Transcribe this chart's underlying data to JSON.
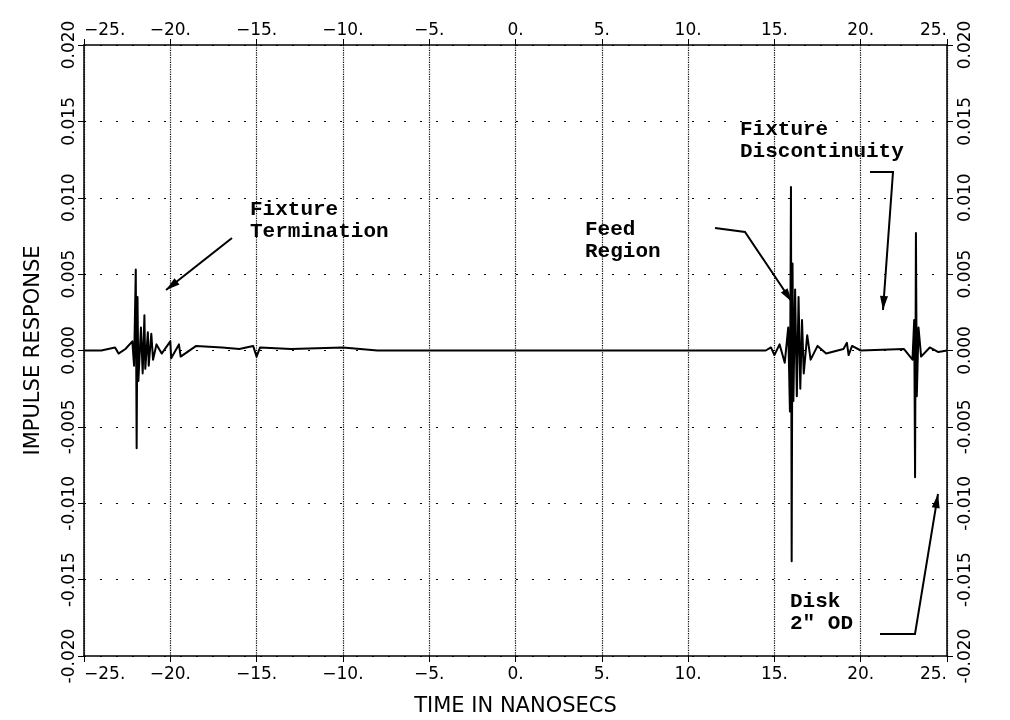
{
  "chart_data": {
    "type": "line",
    "xlabel": "TIME IN NANOSECS",
    "ylabel": "IMPULSE RESPONSE",
    "color": "#000000",
    "line_style": "solid",
    "marker": "none",
    "grid": true,
    "xlim": [
      -25,
      25
    ],
    "x2lim": [
      -25,
      25
    ],
    "xticks": [
      {
        "value": -25,
        "label": "−25."
      },
      {
        "value": -20,
        "label": "−20."
      },
      {
        "value": -15,
        "label": "−15."
      },
      {
        "value": -10,
        "label": "−10."
      },
      {
        "value": -5,
        "label": "−5."
      },
      {
        "value": 0,
        "label": "0."
      },
      {
        "value": 5,
        "label": "5."
      },
      {
        "value": 10,
        "label": "10."
      },
      {
        "value": 15,
        "label": "15."
      },
      {
        "value": 20,
        "label": "20."
      },
      {
        "value": 25,
        "label": "25."
      }
    ],
    "x2ticks": [
      {
        "value": -25,
        "label": "−25."
      },
      {
        "value": -20,
        "label": "−20."
      },
      {
        "value": -15,
        "label": "−15."
      },
      {
        "value": -10,
        "label": "−10."
      },
      {
        "value": -5,
        "label": "−5."
      },
      {
        "value": 0,
        "label": "0."
      },
      {
        "value": 5,
        "label": "5."
      },
      {
        "value": 10,
        "label": "10."
      },
      {
        "value": 15,
        "label": "15."
      },
      {
        "value": 20,
        "label": "20."
      },
      {
        "value": 25,
        "label": "25."
      }
    ],
    "ylim": [
      -0.02,
      0.02
    ],
    "y2lim": [
      -0.02,
      0.02
    ],
    "yticks": [
      {
        "value": -0.02,
        "label": "-0.020"
      },
      {
        "value": -0.015,
        "label": "-0.015"
      },
      {
        "value": -0.01,
        "label": "-0.010"
      },
      {
        "value": -0.005,
        "label": "-0.005"
      },
      {
        "value": 0,
        "label": "0.000"
      },
      {
        "value": 0.005,
        "label": "0.005"
      },
      {
        "value": 0.01,
        "label": "0.010"
      },
      {
        "value": 0.015,
        "label": "0.015"
      },
      {
        "value": 0.02,
        "label": "0.020"
      }
    ],
    "y2ticks": [
      {
        "value": -0.02,
        "label": "-0.020"
      },
      {
        "value": -0.015,
        "label": "-0.015"
      },
      {
        "value": -0.01,
        "label": "-0.010"
      },
      {
        "value": -0.005,
        "label": "-0.005"
      },
      {
        "value": 0,
        "label": "0.000"
      },
      {
        "value": 0.005,
        "label": "0.005"
      },
      {
        "value": 0.01,
        "label": "0.010"
      },
      {
        "value": 0.015,
        "label": "0.015"
      },
      {
        "value": 0.02,
        "label": "0.020"
      }
    ],
    "x": [
      -25,
      -24,
      -23.2,
      -23,
      -22.6,
      -22.2,
      -22.1,
      -22,
      -21.95,
      -21.9,
      -21.85,
      -21.7,
      -21.6,
      -21.5,
      -21.45,
      -21.3,
      -21.25,
      -21.1,
      -21,
      -20.8,
      -20.5,
      -20,
      -19.95,
      -19.5,
      -19.4,
      -18.5,
      -17,
      -16,
      -15.2,
      -15,
      -14.8,
      -13,
      -10,
      -9,
      -8,
      14.5,
      14.8,
      15,
      15.3,
      15.6,
      15.8,
      15.9,
      15.96,
      16,
      16.05,
      16.1,
      16.2,
      16.3,
      16.4,
      16.5,
      16.6,
      16.7,
      16.9,
      17.1,
      17.5,
      18,
      19,
      19.2,
      19.3,
      19.5,
      20,
      22.5,
      23,
      23.1,
      23.15,
      23.2,
      23.25,
      23.35,
      23.5,
      24,
      24.5,
      25
    ],
    "values": [
      0,
      0,
      0.0002,
      -0.0002,
      0.0001,
      0.0006,
      -0.001,
      0.0053,
      -0.0064,
      0.0035,
      -0.002,
      0.0015,
      -0.0015,
      0.0023,
      -0.0012,
      0.0012,
      -0.001,
      0.0011,
      -0.0006,
      0.0004,
      -0.0002,
      0.0006,
      -0.0005,
      0.0004,
      -0.0004,
      0.0003,
      0.0002,
      0.0001,
      0.0003,
      -0.0004,
      0.0002,
      0.0001,
      0.0002,
      0.0001,
      0,
      0,
      0.0002,
      -0.0003,
      0.0004,
      -0.0008,
      0.0015,
      -0.004,
      0.0107,
      -0.0138,
      0.0057,
      -0.0033,
      0.004,
      -0.003,
      0.0035,
      -0.0025,
      0.002,
      -0.0015,
      0.001,
      -0.0006,
      0.0003,
      -0.0002,
      0.0001,
      0.0005,
      -0.0003,
      0.0003,
      0,
      0.0001,
      -0.0006,
      0.002,
      -0.0083,
      0.0077,
      -0.003,
      0.0015,
      -0.0004,
      0.0002,
      -0.0001,
      0
    ],
    "annotations": [
      "Fixture\nTermination",
      "Feed\nRegion",
      "Fixture\nDiscontinuity",
      "Disk\n2\" OD"
    ]
  }
}
